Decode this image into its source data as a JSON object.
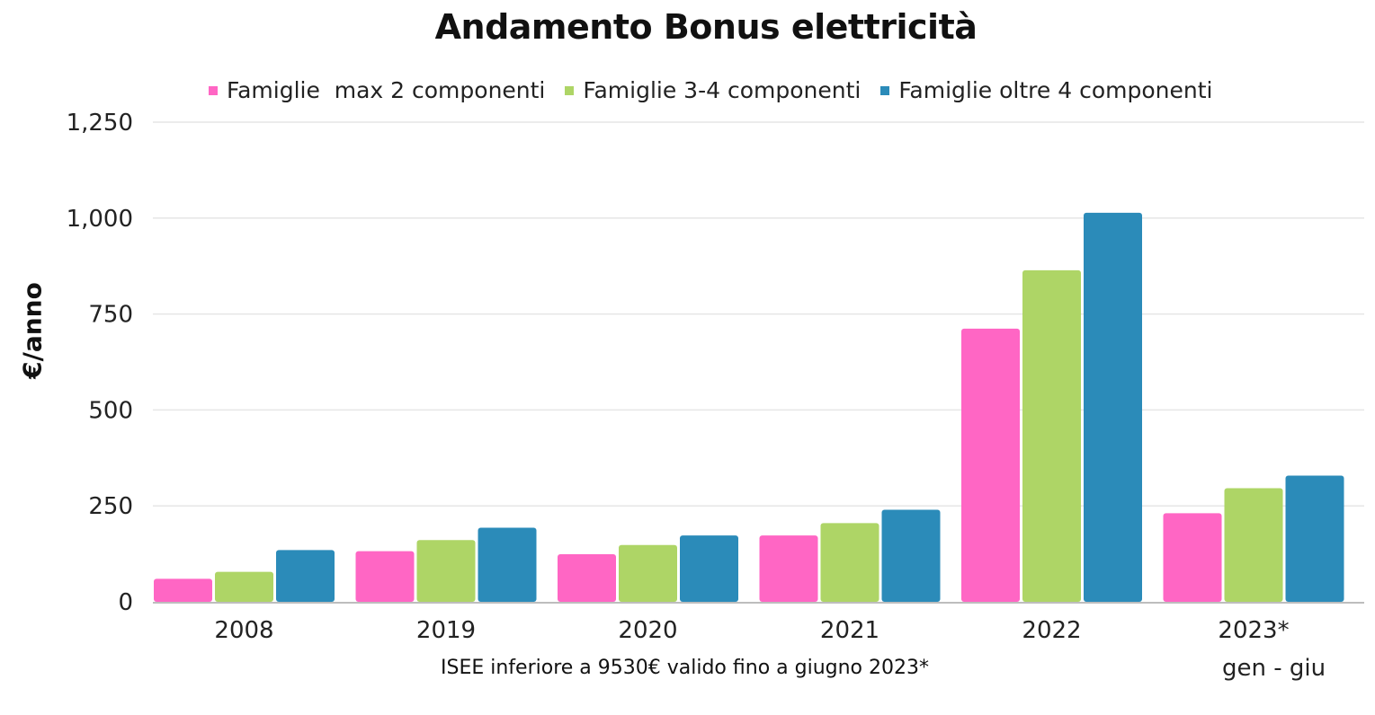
{
  "colors": {
    "series1": "#ff66c4",
    "series2": "#aed566",
    "series3": "#2b8bb9",
    "grid": "#e6e6e6",
    "axis": "#bdbdbd"
  },
  "chart_data": {
    "type": "bar",
    "title": "Andamento Bonus elettricità",
    "ylabel": "€/anno",
    "xlabel": "",
    "ylim": [
      0,
      1250
    ],
    "yticks": [
      0,
      250,
      500,
      750,
      1000,
      1250
    ],
    "ytick_labels": [
      "0",
      "250",
      "500",
      "750",
      "1,000",
      "1,250"
    ],
    "categories": [
      "2008",
      "2019",
      "2020",
      "2021",
      "2022",
      "2023*"
    ],
    "category_sublabel": "gen - giu",
    "grid": true,
    "legend_position": "top",
    "series": [
      {
        "name": "Famiglie  max 2 componenti",
        "color": "#ff66c4",
        "values": [
          60,
          132,
          124,
          173,
          712,
          231
        ]
      },
      {
        "name": "Famiglie 3-4 componenti",
        "color": "#aed566",
        "values": [
          78,
          161,
          148,
          205,
          864,
          296
        ]
      },
      {
        "name": "Famiglie oltre 4 componenti",
        "color": "#2b8bb9",
        "values": [
          135,
          193,
          173,
          240,
          1014,
          329
        ]
      }
    ],
    "footnote": "ISEE inferiore a 9530€ valido fino a giugno 2023*"
  }
}
